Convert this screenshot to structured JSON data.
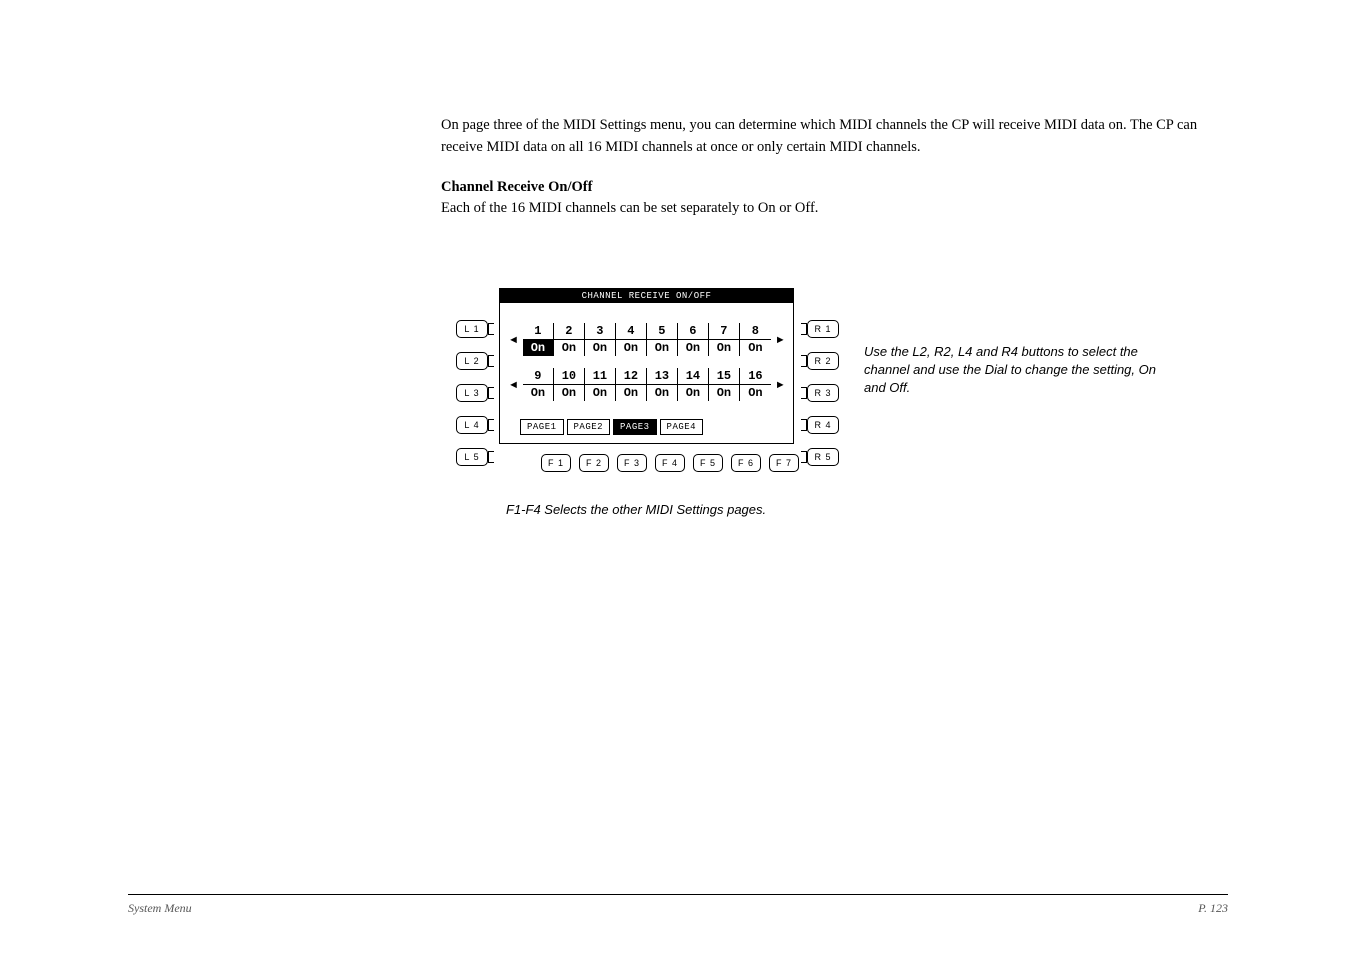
{
  "intro_text": "On page three of the MIDI Settings menu, you can determine which MIDI channels the CP will receive MIDI data on.  The CP can receive MIDI data on all 16 MIDI channels at once or only certain MIDI channels.",
  "section_heading": "Channel Receive On/Off",
  "section_body": "Each of the 16 MIDI channels can be set separately to On or Off.",
  "screen": {
    "title": "CHANNEL RECEIVE ON/OFF",
    "row1": {
      "nums": [
        "1",
        "2",
        "3",
        "4",
        "5",
        "6",
        "7",
        "8"
      ],
      "vals": [
        "On",
        "On",
        "On",
        "On",
        "On",
        "On",
        "On",
        "On"
      ],
      "selected": 0
    },
    "row2": {
      "nums": [
        "9",
        "10",
        "11",
        "12",
        "13",
        "14",
        "15",
        "16"
      ],
      "vals": [
        "On",
        "On",
        "On",
        "On",
        "On",
        "On",
        "On",
        "On"
      ],
      "selected": -1
    },
    "pages": [
      "PAGE1",
      "PAGE2",
      "PAGE3",
      "PAGE4"
    ],
    "active_page": 2
  },
  "buttons": {
    "left": [
      "L 1",
      "L 2",
      "L 3",
      "L 4",
      "L 5"
    ],
    "right": [
      "R 1",
      "R 2",
      "R 3",
      "R 4",
      "R 5"
    ],
    "f": [
      "F 1",
      "F 2",
      "F 3",
      "F 4",
      "F 5",
      "F 6",
      "F 7"
    ]
  },
  "arrows": {
    "left": "◄",
    "right": "►"
  },
  "annotation": "Use the L2, R2, L4 and R4 buttons to select the channel and use the Dial to change the setting, On and Off.",
  "f_caption": "F1-F4   Selects the other MIDI Settings pages.",
  "footer": {
    "left": "System Menu",
    "right": "P. 123"
  }
}
